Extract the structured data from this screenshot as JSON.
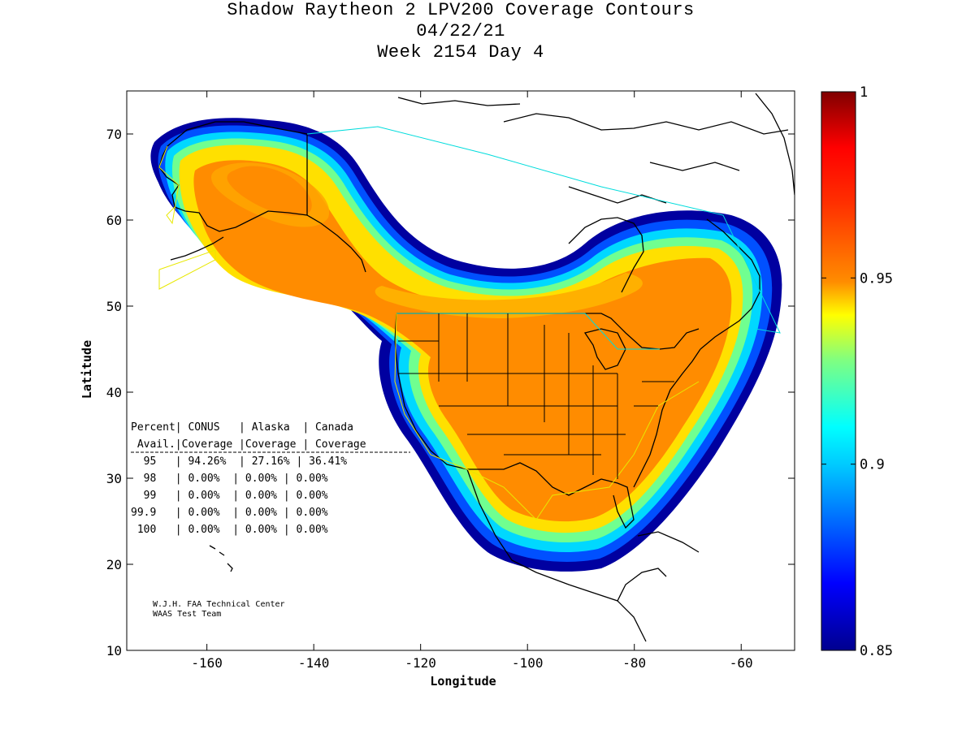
{
  "title": {
    "line1": "Shadow Raytheon 2 LPV200 Coverage Contours",
    "line2": "04/22/21",
    "line3": "Week 2154 Day 4"
  },
  "axes": {
    "xlabel": "Longitude",
    "ylabel": "Latitude",
    "x_ticks": [
      "-160",
      "-140",
      "-120",
      "-100",
      "-80",
      "-60"
    ],
    "y_ticks": [
      "10",
      "20",
      "30",
      "40",
      "50",
      "60",
      "70"
    ]
  },
  "colorbar": {
    "ticks": [
      "0.85",
      "0.9",
      "0.95",
      "1"
    ],
    "low_color": "#00008f",
    "mid_color": "#00ffff",
    "high_color": "#800000"
  },
  "stats_table": {
    "header1": "Percent| CONUS   | Alaska  | Canada",
    "header2": " Avail.|Coverage |Coverage | Coverage",
    "rows": [
      "  95   | 94.26%  | 27.16% | 36.41%",
      "  98   | 0.00%  | 0.00% | 0.00%",
      "  99   | 0.00%  | 0.00% | 0.00%",
      "99.9   | 0.00%  | 0.00% | 0.00%",
      " 100   | 0.00%  | 0.00% | 0.00%"
    ]
  },
  "credits": {
    "line1": "W.J.H. FAA Technical Center",
    "line2": "WAAS Test Team"
  },
  "chart_data": {
    "type": "heatmap",
    "title": "Shadow Raytheon 2 LPV200 Coverage Contours",
    "xlabel": "Longitude",
    "ylabel": "Latitude",
    "xlim": [
      -175,
      -50
    ],
    "ylim": [
      10,
      75
    ],
    "colorbar_range": [
      0.85,
      1
    ],
    "grid": false,
    "coverage_95_percent": {
      "CONUS": "94.26%",
      "Alaska": "27.16%",
      "Canada": "36.41%"
    }
  }
}
